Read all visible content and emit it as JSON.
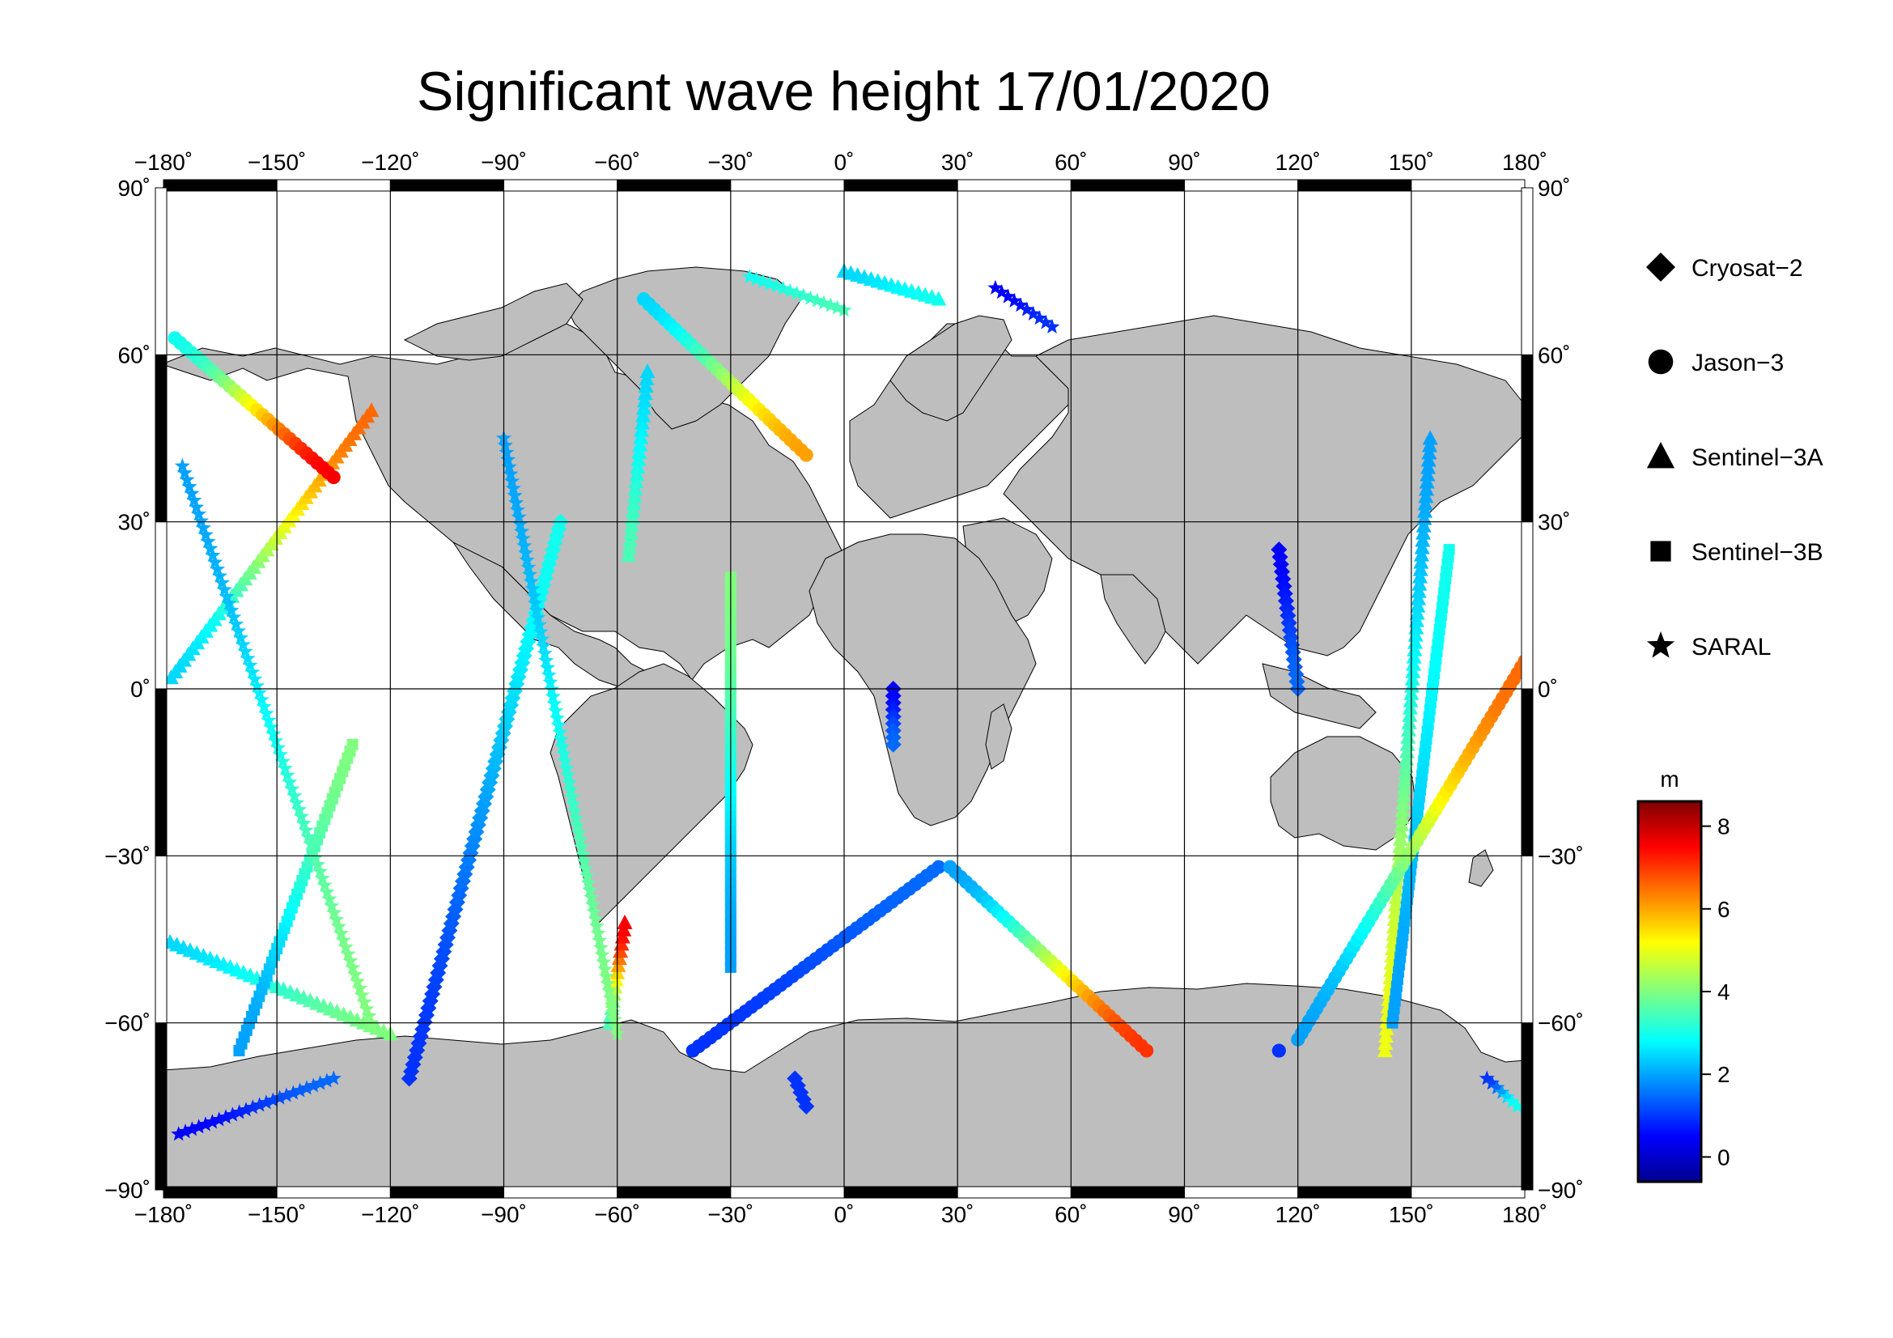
{
  "title": "Significant wave height 17/01/2020",
  "map": {
    "projection": "equirectangular",
    "lon_range": [
      -180,
      180
    ],
    "lat_range": [
      -90,
      90
    ],
    "grid_lons": [
      -180,
      -150,
      -120,
      -90,
      -60,
      -30,
      0,
      30,
      60,
      90,
      120,
      150,
      180
    ],
    "grid_lats": [
      -90,
      -60,
      -30,
      0,
      30,
      60,
      90
    ],
    "lon_tick_labels": [
      "−180˚",
      "−150˚",
      "−120˚",
      "−90˚",
      "−60˚",
      "−30˚",
      "0˚",
      "30˚",
      "60˚",
      "90˚",
      "120˚",
      "150˚",
      "180˚"
    ],
    "lat_tick_labels": [
      "−90˚",
      "−60˚",
      "−30˚",
      "0˚",
      "30˚",
      "60˚",
      "90˚"
    ],
    "land_color": "#bebebe",
    "ocean_color": "#ffffff",
    "grid_color": "#000000"
  },
  "legend": {
    "items": [
      {
        "label": "Cryosat−2",
        "marker": "diamond"
      },
      {
        "label": "Jason−3",
        "marker": "circle"
      },
      {
        "label": "Sentinel−3A",
        "marker": "triangle"
      },
      {
        "label": "Sentinel−3B",
        "marker": "square"
      },
      {
        "label": "SARAL",
        "marker": "star"
      }
    ]
  },
  "colorbar": {
    "unit": "m",
    "min": -0.6,
    "max": 8.6,
    "ticks": [
      0,
      2,
      4,
      6,
      8
    ],
    "tick_labels": [
      "0",
      "2",
      "4",
      "6",
      "8"
    ],
    "colormap": "jet"
  },
  "chart_data": {
    "type": "scatter",
    "title": "Significant wave height 17/01/2020",
    "xlim": [
      -180,
      180
    ],
    "ylim": [
      -90,
      90
    ],
    "value_unit": "m",
    "series": [
      {
        "name": "Sentinel−3A",
        "marker": "triangle",
        "tracks": [
          {
            "from": [
              -178,
              2
            ],
            "to": [
              -125,
              50
            ],
            "swh_range": [
              2.5,
              6.5
            ]
          },
          {
            "from": [
              -180,
              -45
            ],
            "to": [
              -120,
              -62
            ],
            "swh_range": [
              2.5,
              4
            ]
          },
          {
            "from": [
              -52,
              57
            ],
            "to": [
              -57,
              24
            ],
            "swh_range": [
              2.5,
              3.5
            ]
          },
          {
            "from": [
              -62,
              -60
            ],
            "to": [
              -58,
              -42
            ],
            "swh_range": [
              3.5,
              7.5
            ]
          },
          {
            "from": [
              0,
              75
            ],
            "to": [
              25,
              70
            ],
            "swh_range": [
              2.5,
              3
            ]
          },
          {
            "from": [
              155,
              45
            ],
            "to": [
              143,
              -65
            ],
            "swh_range": [
              2,
              5
            ]
          }
        ]
      },
      {
        "name": "Sentinel−3B",
        "marker": "square",
        "tracks": [
          {
            "from": [
              -160,
              -65
            ],
            "to": [
              -130,
              -10
            ],
            "swh_range": [
              2,
              4
            ]
          },
          {
            "from": [
              -30,
              -50
            ],
            "to": [
              -30,
              20
            ],
            "swh_range": [
              2,
              4
            ]
          },
          {
            "from": [
              145,
              -60
            ],
            "to": [
              160,
              25
            ],
            "swh_range": [
              2,
              3
            ]
          }
        ]
      },
      {
        "name": "Cryosat−2",
        "marker": "diamond",
        "tracks": [
          {
            "from": [
              -115,
              -70
            ],
            "to": [
              -75,
              30
            ],
            "swh_range": [
              1,
              3
            ]
          },
          {
            "from": [
              -13,
              -70
            ],
            "to": [
              -10,
              -75
            ],
            "swh_range": [
              1,
              1
            ]
          },
          {
            "from": [
              13,
              0
            ],
            "to": [
              13,
              -10
            ],
            "swh_range": [
              0.5,
              1.5
            ]
          },
          {
            "from": [
              115,
              25
            ],
            "to": [
              120,
              0
            ],
            "swh_range": [
              0.5,
              1.5
            ]
          }
        ]
      },
      {
        "name": "Jason−3",
        "marker": "circle",
        "tracks": [
          {
            "from": [
              -177,
              63
            ],
            "to": [
              -135,
              38
            ],
            "swh_range": [
              3,
              7.5
            ]
          },
          {
            "from": [
              -53,
              70
            ],
            "to": [
              -10,
              42
            ],
            "swh_range": [
              2.5,
              6
            ]
          },
          {
            "from": [
              -40,
              -65
            ],
            "to": [
              25,
              -32
            ],
            "swh_range": [
              1,
              1.5
            ]
          },
          {
            "from": [
              28,
              -32
            ],
            "to": [
              80,
              -65
            ],
            "swh_range": [
              2,
              7
            ]
          },
          {
            "from": [
              120,
              -63
            ],
            "to": [
              180,
              5
            ],
            "swh_range": [
              2,
              6.5
            ]
          },
          {
            "from": [
              115,
              -65
            ],
            "to": [
              115,
              -65
            ],
            "swh_range": [
              1,
              1
            ]
          }
        ]
      },
      {
        "name": "SARAL",
        "marker": "star",
        "tracks": [
          {
            "from": [
              -175,
              40
            ],
            "to": [
              -125,
              -60
            ],
            "swh_range": [
              2,
              4
            ]
          },
          {
            "from": [
              -90,
              45
            ],
            "to": [
              -60,
              -62
            ],
            "swh_range": [
              2,
              4
            ]
          },
          {
            "from": [
              -25,
              74
            ],
            "to": [
              0,
              68
            ],
            "swh_range": [
              3,
              3.5
            ]
          },
          {
            "from": [
              40,
              72
            ],
            "to": [
              55,
              65
            ],
            "swh_range": [
              0.5,
              1
            ]
          },
          {
            "from": [
              -176,
              -80
            ],
            "to": [
              -135,
              -70
            ],
            "swh_range": [
              0.5,
              1.5
            ]
          },
          {
            "from": [
              170,
              -70
            ],
            "to": [
              178,
              -75
            ],
            "swh_range": [
              1,
              3
            ]
          }
        ]
      }
    ]
  }
}
